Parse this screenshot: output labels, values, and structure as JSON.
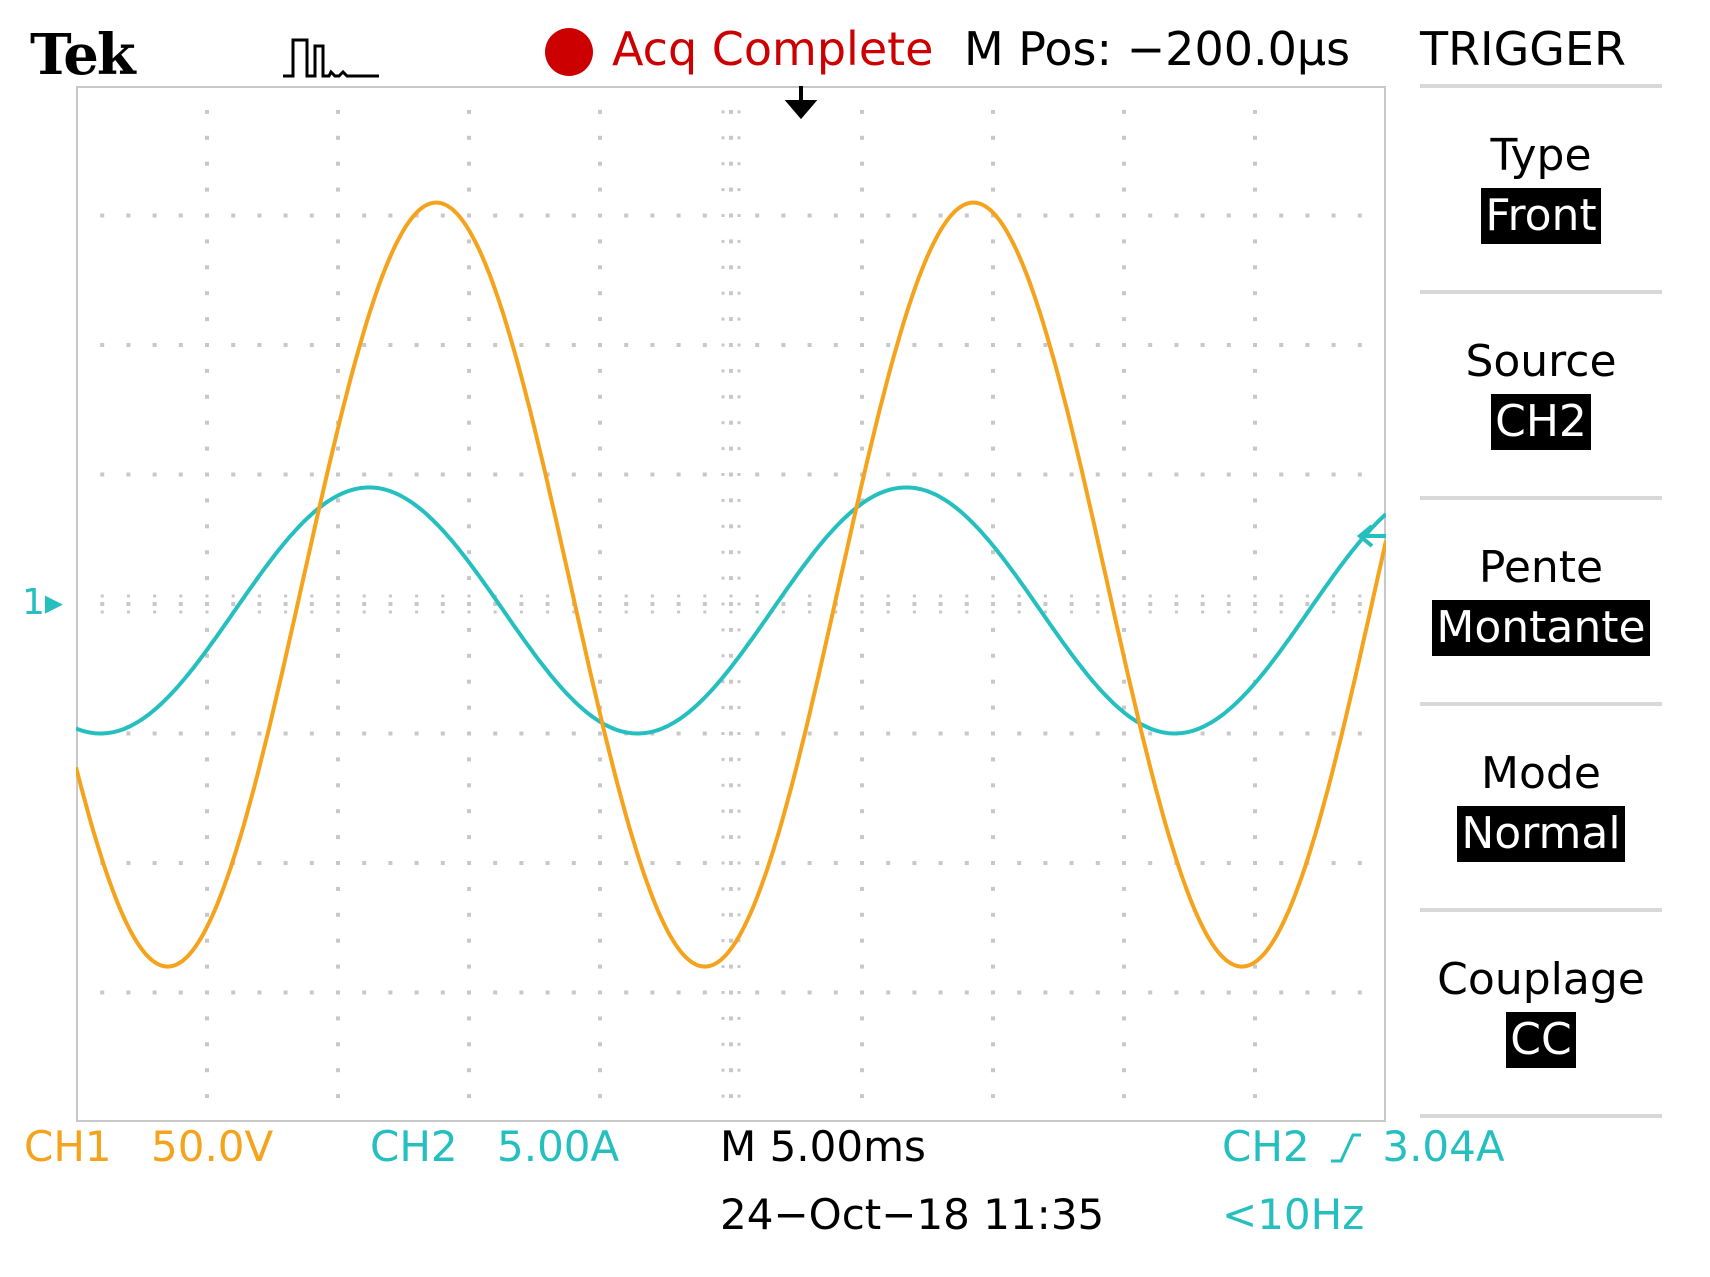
{
  "header": {
    "brand": "Tek",
    "acq_status": "Acq Complete",
    "m_pos": "M Pos: −200.0µs"
  },
  "trigger_menu": {
    "title": "TRIGGER",
    "items": [
      {
        "label": "Type",
        "value": "Front"
      },
      {
        "label": "Source",
        "value": "CH2"
      },
      {
        "label": "Pente",
        "value": "Montante"
      },
      {
        "label": "Mode",
        "value": "Normal"
      },
      {
        "label": "Couplage",
        "value": "CC"
      }
    ]
  },
  "markers": {
    "ch1_ground": "1"
  },
  "status": {
    "ch1_label": "CH1",
    "ch1_scale": "50.0V",
    "ch2_label": "CH2",
    "ch2_scale": "5.00A",
    "timebase": "M 5.00ms",
    "trigger_source": "CH2",
    "trigger_level": "3.04A",
    "date_time": "24−Oct−18 11:35",
    "frequency": "<10Hz"
  },
  "colors": {
    "ch1": "#f5a31c",
    "ch2": "#25bfc0",
    "acq": "#cc0000"
  },
  "chart_data": {
    "type": "line",
    "x_unit": "ms",
    "xlim": [
      -25,
      25
    ],
    "ylim": [
      -4,
      4
    ],
    "y_unit": "divisions",
    "grid": true,
    "series": [
      {
        "name": "CH1",
        "amplitude_div": 2.95,
        "period_ms": 20.5,
        "phase_deg": -90,
        "offset_div": 0.15
      },
      {
        "name": "CH2",
        "amplitude_div": 0.95,
        "period_ms": 20.5,
        "phase_deg": -45,
        "offset_div": -0.05
      }
    ]
  }
}
